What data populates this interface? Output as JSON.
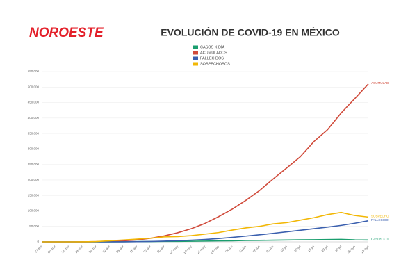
{
  "brand": "NOROESTE",
  "chart_data": {
    "type": "line",
    "title": "EVOLUCIÓN DE COVID-19 EN MÉXICO",
    "categories": [
      "27-feb",
      "05-mar",
      "12-mar",
      "19-mar",
      "26-mar",
      "02-abr",
      "09-abr",
      "16-abr",
      "23-abr",
      "30-abr",
      "07-may",
      "14-may",
      "21-may",
      "28-may",
      "04-jun",
      "11-jun",
      "18-jun",
      "25-jun",
      "02-jul",
      "09-jul",
      "16-jul",
      "23-jul",
      "30-jul",
      "06-ago",
      "13-ago"
    ],
    "series": [
      {
        "name": "CASOS X DÍA",
        "end_label": "CASOS X DI",
        "color": "#1a9e6e",
        "values": [
          0,
          0,
          0,
          20,
          100,
          200,
          400,
          600,
          900,
          1400,
          1600,
          2000,
          2500,
          3200,
          3500,
          4500,
          4800,
          5500,
          6000,
          6500,
          7000,
          7500,
          8000,
          6500,
          6000
        ]
      },
      {
        "name": "ACUMULADOS",
        "end_label": "ACUMULAD",
        "color": "#d04a3a",
        "values": [
          0,
          0,
          0,
          100,
          600,
          1500,
          3400,
          6300,
          11600,
          19200,
          29600,
          42600,
          59600,
          81400,
          105700,
          134000,
          165500,
          203000,
          238500,
          275000,
          324000,
          362300,
          416200,
          462700,
          510000
        ]
      },
      {
        "name": "FALLECIDOS",
        "end_label": "FALLECIDO",
        "color": "#3a5fae",
        "values": [
          0,
          0,
          0,
          0,
          10,
          60,
          250,
          600,
          1300,
          2400,
          3800,
          5500,
          7800,
          10800,
          14500,
          18500,
          22800,
          27500,
          32500,
          37500,
          42500,
          47500,
          53000,
          60000,
          68000
        ]
      },
      {
        "name": "SOSPECHOSOS",
        "end_label": "SOSPECHO",
        "color": "#f2b705",
        "values": [
          0,
          0,
          5,
          100,
          1000,
          3500,
          6000,
          9000,
          12000,
          16000,
          17000,
          20000,
          25000,
          30000,
          38000,
          45000,
          50000,
          58000,
          62000,
          70000,
          78000,
          88000,
          95000,
          85000,
          80000
        ]
      }
    ],
    "ylim": [
      0,
      550000
    ],
    "yticks": [
      0,
      {
        "value": 50000,
        "label": "50,000"
      },
      {
        "value": 100000,
        "label": "100,000"
      },
      {
        "value": 150000,
        "label": "150,000"
      },
      {
        "value": 200000,
        "label": "200,000"
      },
      {
        "value": 250000,
        "label": "250,000"
      },
      {
        "value": 300000,
        "label": "300,000"
      },
      {
        "value": 350000,
        "label": "350,000"
      },
      {
        "value": 400000,
        "label": "400,000"
      },
      {
        "value": 450000,
        "label": "450,000"
      },
      {
        "value": 500000,
        "label": "500,000"
      },
      {
        "value": 550000,
        "label": "550,000"
      }
    ],
    "grid": true
  }
}
